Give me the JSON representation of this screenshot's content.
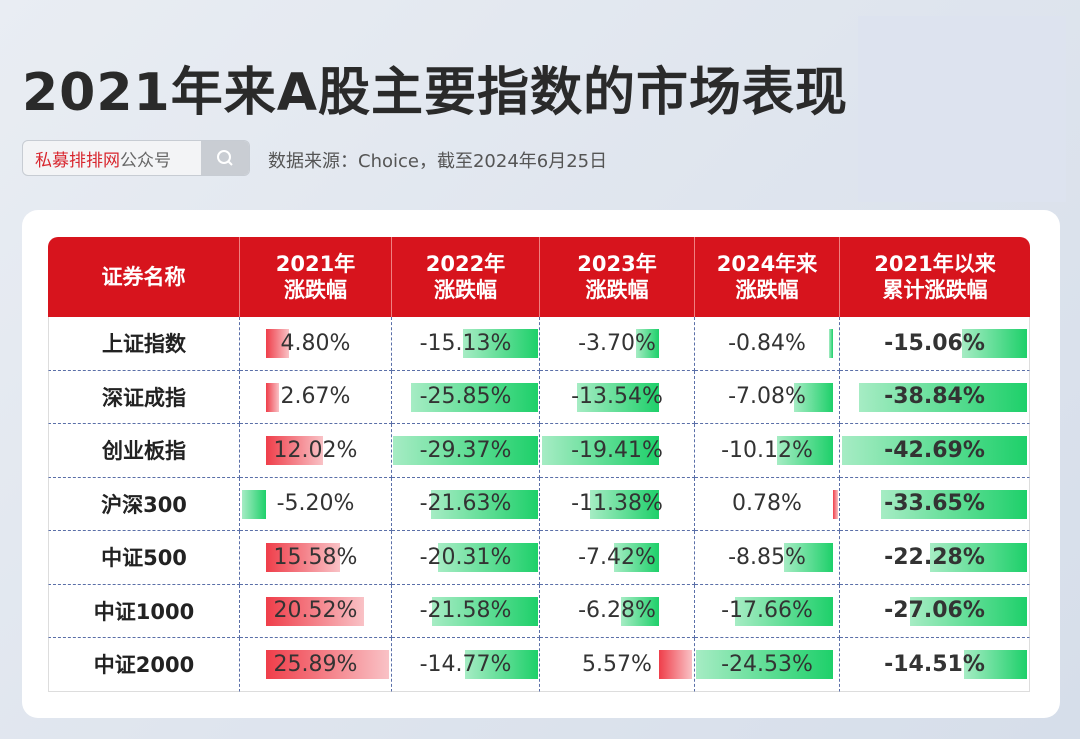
{
  "title": "2021年来A股主要指数的市场表现",
  "search": {
    "brand": "私募排排网",
    "suffix": "公众号",
    "icon": "search-icon"
  },
  "source": "数据来源：Choice，截至2024年6月25日",
  "colors": {
    "header": "#d7141d",
    "positive": "#ef3e4a",
    "negative": "#1ed06a"
  },
  "chart_data": {
    "type": "table",
    "columns": [
      "证券名称",
      "2021年\n涨跌幅",
      "2022年\n涨跌幅",
      "2023年\n涨跌幅",
      "2024年来\n涨跌幅",
      "2021年以来\n累计涨跌幅"
    ],
    "rows": [
      {
        "name": "上证指数",
        "values": [
          4.8,
          -15.13,
          -3.7,
          -0.84,
          -15.06
        ]
      },
      {
        "name": "深证成指",
        "values": [
          2.67,
          -25.85,
          -13.54,
          -7.08,
          -38.84
        ]
      },
      {
        "name": "创业板指",
        "values": [
          12.02,
          -29.37,
          -19.41,
          -10.12,
          -42.69
        ]
      },
      {
        "name": "沪深300",
        "values": [
          -5.2,
          -21.63,
          -11.38,
          0.78,
          -33.65
        ]
      },
      {
        "name": "中证500",
        "values": [
          15.58,
          -20.31,
          -7.42,
          -8.85,
          -22.28
        ]
      },
      {
        "name": "中证1000",
        "values": [
          20.52,
          -21.58,
          -6.28,
          -17.66,
          -27.06
        ]
      },
      {
        "name": "中证2000",
        "values": [
          25.89,
          -14.77,
          5.57,
          -24.53,
          -14.51
        ]
      }
    ],
    "unit": "%"
  }
}
